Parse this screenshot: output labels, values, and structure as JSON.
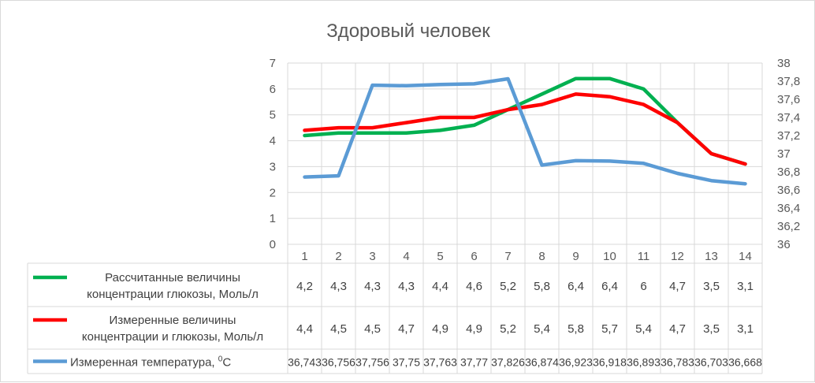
{
  "chart_data": {
    "type": "line",
    "title": "Здоровый человек",
    "categories": [
      "1",
      "2",
      "3",
      "4",
      "5",
      "6",
      "7",
      "8",
      "9",
      "10",
      "11",
      "12",
      "13",
      "14"
    ],
    "y_left": {
      "ylim": [
        0,
        7
      ],
      "ticks": [
        "0",
        "1",
        "2",
        "3",
        "4",
        "5",
        "6",
        "7"
      ]
    },
    "y_right": {
      "ylim": [
        36,
        38
      ],
      "ticks": [
        "36",
        "36,2",
        "36,4",
        "36,6",
        "36,8",
        "37",
        "37,2",
        "37,4",
        "37,6",
        "37,8",
        "38"
      ]
    },
    "grid": true,
    "legend": "data-table",
    "series": [
      {
        "name_lines": [
          "Рассчитанные величины",
          "концентрации глюкозы, Моль/л"
        ],
        "axis": "left",
        "color": "#00b050",
        "values": [
          4.2,
          4.3,
          4.3,
          4.3,
          4.4,
          4.6,
          5.2,
          5.8,
          6.4,
          6.4,
          6,
          4.7,
          3.5,
          3.1
        ],
        "labels": [
          "4,2",
          "4,3",
          "4,3",
          "4,3",
          "4,4",
          "4,6",
          "5,2",
          "5,8",
          "6,4",
          "6,4",
          "6",
          "4,7",
          "3,5",
          "3,1"
        ]
      },
      {
        "name_lines": [
          "Измеренные величины",
          "концентрации и глюкозы, Моль/л"
        ],
        "axis": "left",
        "color": "#ff0000",
        "values": [
          4.4,
          4.5,
          4.5,
          4.7,
          4.9,
          4.9,
          5.2,
          5.4,
          5.8,
          5.7,
          5.4,
          4.7,
          3.5,
          3.1
        ],
        "labels": [
          "4,4",
          "4,5",
          "4,5",
          "4,7",
          "4,9",
          "4,9",
          "5,2",
          "5,4",
          "5,8",
          "5,7",
          "5,4",
          "4,7",
          "3,5",
          "3,1"
        ]
      },
      {
        "name_lines": [
          "Измеренная температура, ",
          "0",
          "С"
        ],
        "axis": "right",
        "color": "#5b9bd5",
        "values": [
          36.743,
          36.756,
          37.756,
          37.75,
          37.763,
          37.77,
          37.826,
          36.874,
          36.923,
          36.918,
          36.893,
          36.783,
          36.703,
          36.668
        ],
        "labels": [
          "36,743",
          "36,756",
          "37,756",
          "37,75",
          "37,763",
          "37,77",
          "37,826",
          "36,874",
          "36,923",
          "36,918",
          "36,893",
          "36,783",
          "36,703",
          "36,668"
        ]
      }
    ]
  }
}
